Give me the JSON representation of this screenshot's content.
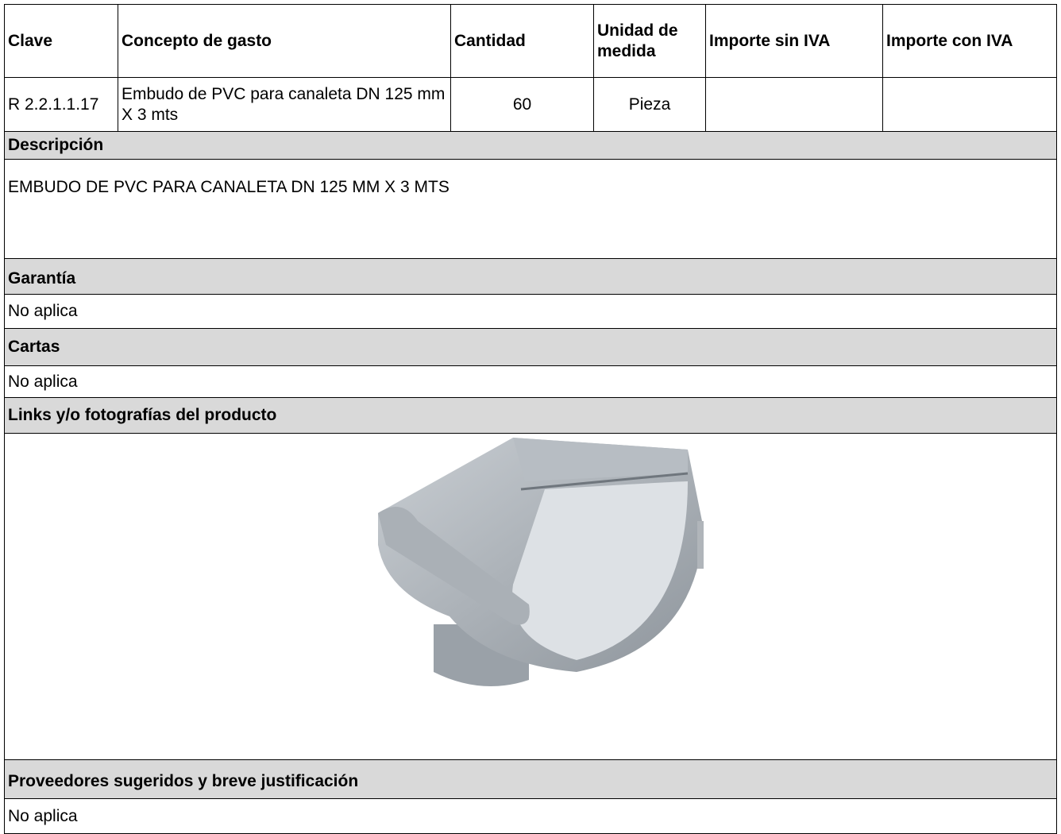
{
  "table": {
    "headers": [
      "Clave",
      "Concepto de gasto",
      "Cantidad",
      "Unidad de medida",
      "Importe sin IVA",
      "Importe con IVA"
    ],
    "rows": [
      [
        "R 2.2.1.1.17",
        "Embudo de PVC para canaleta DN 125 mm X 3 mts",
        "60",
        "Pieza",
        "",
        ""
      ]
    ]
  },
  "sections": [
    {
      "title": "Descripción",
      "content": "EMBUDO DE PVC PARA CANALETA DN 125 MM X 3 MTS"
    },
    {
      "title": "Garantía",
      "content": "No aplica"
    },
    {
      "title": "Cartas",
      "content": "No aplica"
    },
    {
      "title": "Links y/o fotografías del producto"
    },
    {
      "title": "Proveedores sugeridos y breve justificación",
      "content": "No aplica"
    }
  ]
}
